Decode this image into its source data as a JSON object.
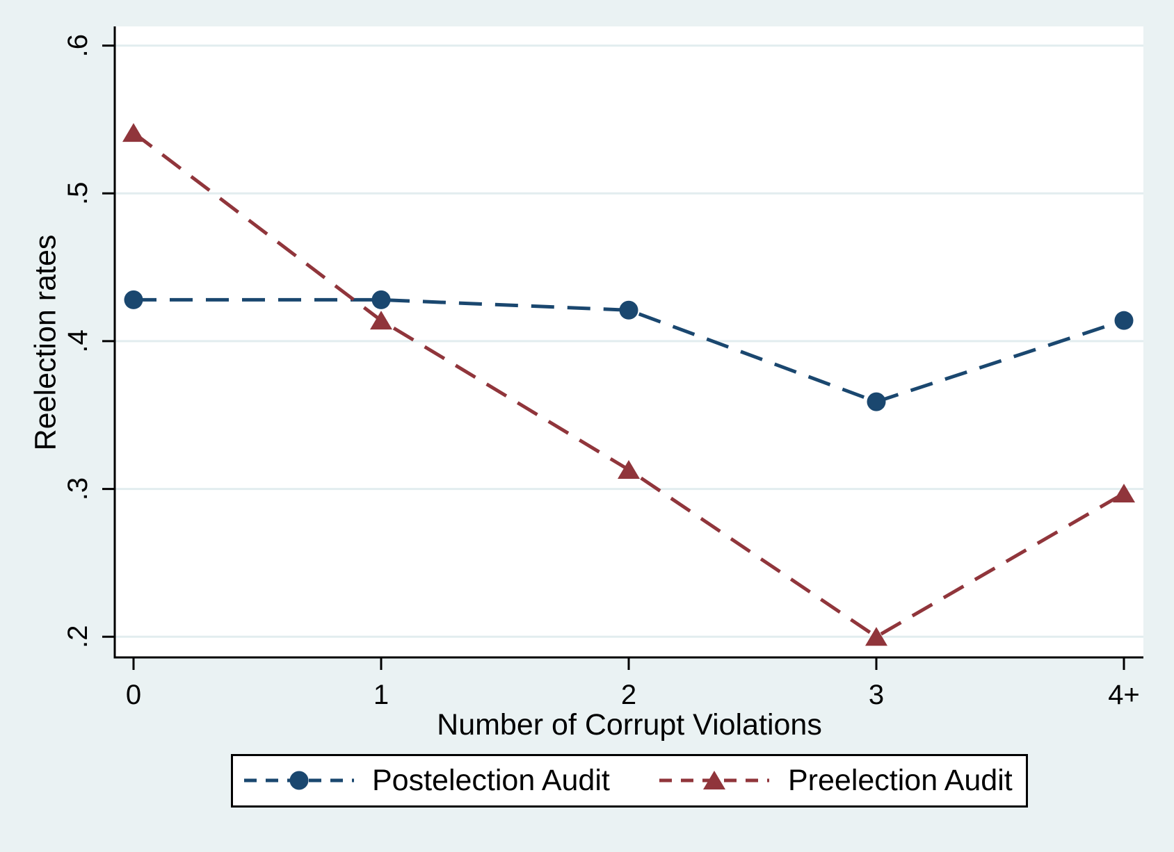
{
  "chart_data": {
    "type": "line",
    "title": "",
    "xlabel": "Number of Corrupt Violations",
    "ylabel": "Reelection rates",
    "categories": [
      "0",
      "1",
      "2",
      "3",
      "4+"
    ],
    "y_ticks": {
      "labels": [
        ".2",
        ".3",
        ".4",
        ".5",
        ".6"
      ],
      "values": [
        0.2,
        0.3,
        0.4,
        0.5,
        0.6
      ]
    },
    "ylim": [
      0.186,
      0.613
    ],
    "grid": true,
    "legend_position": "bottom",
    "colors": {
      "background": "#eaf2f3",
      "plot_background": "#ffffff",
      "gridline": "#e2edef",
      "axis": "#000000",
      "navy": "#1a476f",
      "maroon": "#90353b"
    },
    "series": [
      {
        "name": "Postelection Audit",
        "marker": "circle",
        "color": "#1a476f",
        "values": [
          0.428,
          0.428,
          0.421,
          0.359,
          0.414
        ]
      },
      {
        "name": "Preelection Audit",
        "marker": "triangle",
        "color": "#90353b",
        "values": [
          0.541,
          0.414,
          0.313,
          0.2,
          0.297
        ]
      }
    ]
  }
}
